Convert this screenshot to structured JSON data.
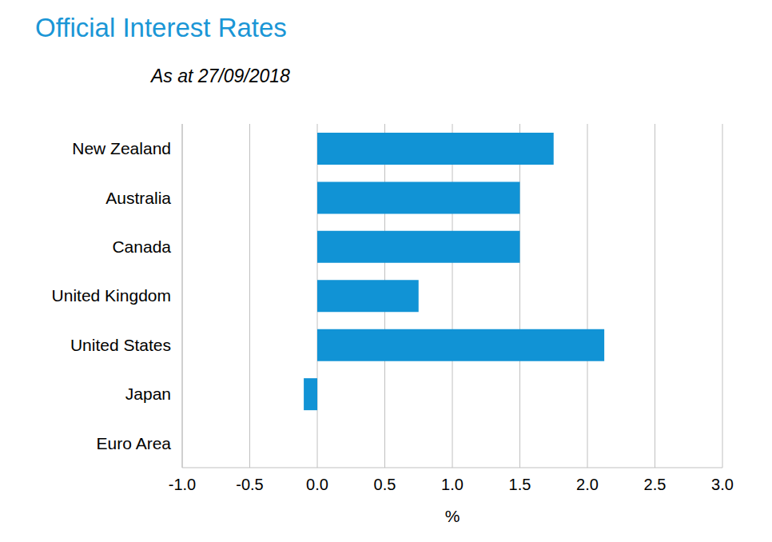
{
  "chart_data": {
    "type": "bar",
    "title": "Official Interest Rates",
    "subtitle": "As at 27/09/2018",
    "xlabel": "%",
    "orientation": "horizontal",
    "categories": [
      "New Zealand",
      "Australia",
      "Canada",
      "United Kingdom",
      "United States",
      "Japan",
      "Euro Area"
    ],
    "values": [
      1.75,
      1.5,
      1.5,
      0.75,
      2.125,
      -0.1,
      0
    ],
    "color": "#1193d5",
    "xlim": [
      -1,
      3
    ],
    "xticks": [
      {
        "value": -1,
        "label": "-1.0"
      },
      -0.5,
      {
        "value": 0,
        "label": "0.0"
      },
      0.5,
      {
        "value": 1,
        "label": "1.0"
      },
      1.5,
      {
        "value": 2,
        "label": "2.0"
      },
      2.5,
      {
        "value": 3,
        "label": "3.0"
      }
    ],
    "grid": true
  }
}
